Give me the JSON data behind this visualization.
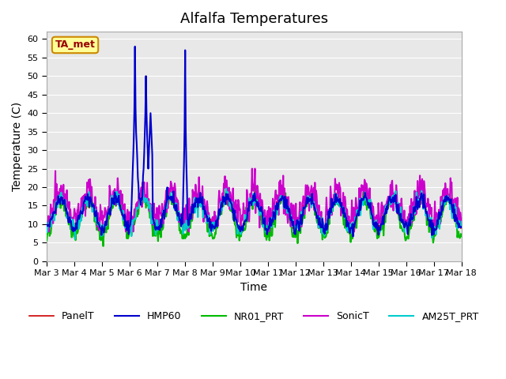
{
  "title": "Alfalfa Temperatures",
  "xlabel": "Time",
  "ylabel": "Temperature (C)",
  "ylim": [
    0,
    62
  ],
  "yticks": [
    0,
    5,
    10,
    15,
    20,
    25,
    30,
    35,
    40,
    45,
    50,
    55,
    60
  ],
  "bg_color": "#e8e8e8",
  "annotation_text": "TA_met",
  "annotation_bg": "#ffff99",
  "annotation_border": "#cc8800",
  "annotation_text_color": "#990000",
  "colors": {
    "PanelT": "#cc0000",
    "HMP60": "#0000cc",
    "NR01_PRT": "#00bb00",
    "SonicT": "#cc00cc",
    "AM25T_PRT": "#00cccc"
  },
  "linewidths": {
    "PanelT": 1.2,
    "HMP60": 1.5,
    "NR01_PRT": 1.5,
    "SonicT": 1.5,
    "AM25T_PRT": 1.5
  },
  "x_tick_labels": [
    "Mar 3",
    "Mar 4",
    "Mar 5",
    "Mar 6",
    "Mar 7",
    "Mar 8",
    "Mar 9",
    "Mar 10",
    "Mar 11",
    "Mar 12",
    "Mar 13",
    "Mar 14",
    "Mar 15",
    "Mar 16",
    "Mar 17",
    "Mar 18"
  ],
  "n_days": 15,
  "pts_per_day": 48
}
